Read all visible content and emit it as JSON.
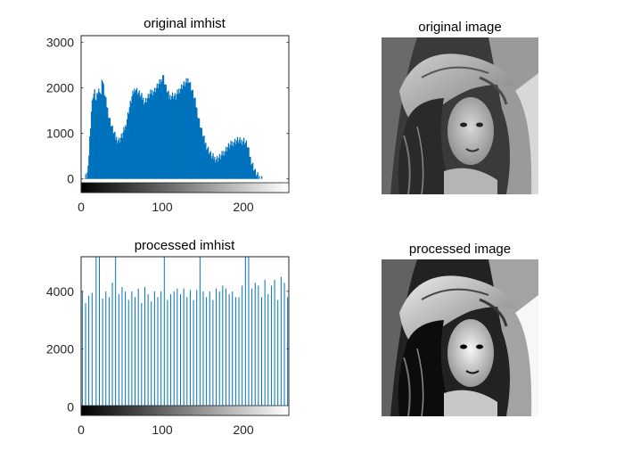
{
  "figure": {
    "background": "#ffffff",
    "bar_color": "#0072bd"
  },
  "chart_data": [
    {
      "type": "bar",
      "title": "original imhist",
      "xlabel": "",
      "ylabel": "",
      "xlim": [
        0,
        256
      ],
      "ylim": [
        -300,
        3150
      ],
      "xticks": [
        0,
        100,
        200
      ],
      "yticks": [
        0,
        1000,
        2000,
        3000
      ],
      "grid": false,
      "colorbar": "gray",
      "envelope": [
        [
          0,
          0
        ],
        [
          2,
          0
        ],
        [
          4,
          10
        ],
        [
          6,
          60
        ],
        [
          8,
          200
        ],
        [
          10,
          900
        ],
        [
          12,
          1500
        ],
        [
          14,
          1850
        ],
        [
          16,
          1900
        ],
        [
          18,
          1700
        ],
        [
          20,
          1900
        ],
        [
          22,
          2000
        ],
        [
          24,
          1800
        ],
        [
          25,
          2250
        ],
        [
          28,
          1900
        ],
        [
          30,
          1700
        ],
        [
          34,
          1350
        ],
        [
          38,
          1100
        ],
        [
          42,
          900
        ],
        [
          46,
          850
        ],
        [
          50,
          950
        ],
        [
          54,
          1150
        ],
        [
          58,
          1500
        ],
        [
          62,
          1800
        ],
        [
          66,
          2000
        ],
        [
          70,
          1900
        ],
        [
          74,
          1800
        ],
        [
          78,
          1700
        ],
        [
          82,
          1800
        ],
        [
          86,
          1900
        ],
        [
          90,
          1950
        ],
        [
          94,
          2050
        ],
        [
          98,
          2150
        ],
        [
          100,
          2300
        ],
        [
          104,
          2000
        ],
        [
          108,
          1800
        ],
        [
          112,
          1850
        ],
        [
          116,
          1800
        ],
        [
          120,
          1950
        ],
        [
          124,
          2050
        ],
        [
          128,
          2100
        ],
        [
          132,
          2200
        ],
        [
          136,
          1950
        ],
        [
          140,
          1700
        ],
        [
          144,
          1350
        ],
        [
          148,
          1050
        ],
        [
          152,
          800
        ],
        [
          156,
          650
        ],
        [
          160,
          500
        ],
        [
          164,
          450
        ],
        [
          168,
          450
        ],
        [
          172,
          500
        ],
        [
          176,
          600
        ],
        [
          180,
          700
        ],
        [
          184,
          750
        ],
        [
          188,
          820
        ],
        [
          192,
          850
        ],
        [
          196,
          820
        ],
        [
          200,
          850
        ],
        [
          204,
          750
        ],
        [
          206,
          600
        ],
        [
          208,
          450
        ],
        [
          210,
          350
        ],
        [
          212,
          250
        ],
        [
          214,
          150
        ],
        [
          216,
          80
        ],
        [
          218,
          40
        ],
        [
          220,
          15
        ],
        [
          222,
          5
        ],
        [
          224,
          0
        ],
        [
          255,
          0
        ]
      ]
    },
    {
      "type": "bar",
      "title": "processed imhist",
      "xlabel": "",
      "ylabel": "",
      "xlim": [
        0,
        256
      ],
      "ylim": [
        -300,
        5200
      ],
      "xticks": [
        0,
        100,
        200
      ],
      "yticks": [
        0,
        2000,
        4000
      ],
      "grid": false,
      "colorbar": "gray",
      "spikes": [
        [
          1,
          4000
        ],
        [
          5,
          3600
        ],
        [
          9,
          3850
        ],
        [
          13,
          3950
        ],
        [
          18,
          5200
        ],
        [
          22,
          5200
        ],
        [
          26,
          3750
        ],
        [
          30,
          4000
        ],
        [
          34,
          3800
        ],
        [
          38,
          4300
        ],
        [
          42,
          5200
        ],
        [
          46,
          3900
        ],
        [
          50,
          4150
        ],
        [
          54,
          4000
        ],
        [
          58,
          3700
        ],
        [
          62,
          4000
        ],
        [
          66,
          3800
        ],
        [
          70,
          4100
        ],
        [
          74,
          3600
        ],
        [
          78,
          4150
        ],
        [
          82,
          3900
        ],
        [
          86,
          3650
        ],
        [
          90,
          4000
        ],
        [
          94,
          3800
        ],
        [
          98,
          4000
        ],
        [
          102,
          5200
        ],
        [
          106,
          3700
        ],
        [
          110,
          3900
        ],
        [
          114,
          4000
        ],
        [
          118,
          4100
        ],
        [
          122,
          3900
        ],
        [
          126,
          4100
        ],
        [
          130,
          3800
        ],
        [
          134,
          4050
        ],
        [
          138,
          3700
        ],
        [
          142,
          4050
        ],
        [
          146,
          5200
        ],
        [
          150,
          4000
        ],
        [
          154,
          3800
        ],
        [
          158,
          4000
        ],
        [
          162,
          3700
        ],
        [
          166,
          4100
        ],
        [
          170,
          4000
        ],
        [
          174,
          4200
        ],
        [
          178,
          4100
        ],
        [
          182,
          3900
        ],
        [
          186,
          4000
        ],
        [
          190,
          3800
        ],
        [
          194,
          3800
        ],
        [
          198,
          4200
        ],
        [
          202,
          5200
        ],
        [
          206,
          5200
        ],
        [
          210,
          4100
        ],
        [
          214,
          4300
        ],
        [
          218,
          4200
        ],
        [
          222,
          3800
        ],
        [
          226,
          4400
        ],
        [
          230,
          3900
        ],
        [
          234,
          4200
        ],
        [
          238,
          4400
        ],
        [
          242,
          3700
        ],
        [
          246,
          4500
        ],
        [
          250,
          4300
        ],
        [
          254,
          3800
        ]
      ]
    }
  ],
  "images": [
    {
      "title": "original image",
      "contrast": 1.0
    },
    {
      "title": "processed image",
      "contrast": 1.35
    }
  ]
}
